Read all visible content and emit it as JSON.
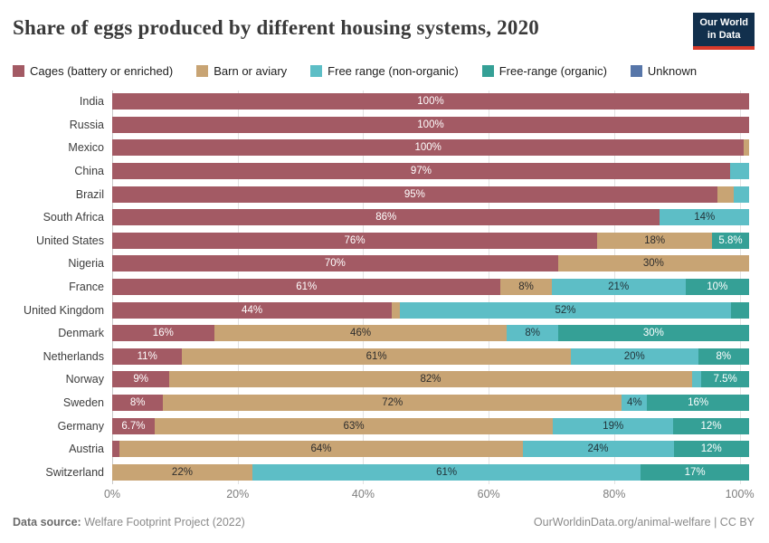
{
  "header": {
    "title": "Share of eggs produced by different housing systems, 2020",
    "logo": {
      "line1": "Our World",
      "line2": "in Data",
      "bg_color": "#12304d",
      "accent_color": "#d93a2b"
    }
  },
  "legend": {
    "items": [
      {
        "label": "Cages (battery or enriched)",
        "color": "#a35a64"
      },
      {
        "label": "Barn or aviary",
        "color": "#c8a474"
      },
      {
        "label": "Free range (non-organic)",
        "color": "#5dbec6"
      },
      {
        "label": "Free-range (organic)",
        "color": "#35a096"
      },
      {
        "label": "Unknown",
        "color": "#5776a9"
      }
    ]
  },
  "chart_data": {
    "type": "bar",
    "orientation": "horizontal",
    "stacked": true,
    "title": "Share of eggs produced by different housing systems, 2020",
    "unit": "%",
    "axis_max": 101.5,
    "x_ticks": [
      0,
      20,
      40,
      60,
      80,
      100
    ],
    "grid": true,
    "legend_position": "top",
    "series_names": [
      "Cages (battery or enriched)",
      "Barn or aviary",
      "Free range (non-organic)",
      "Free-range (organic)",
      "Unknown"
    ],
    "series_colors": [
      "#a35a64",
      "#c8a474",
      "#5dbec6",
      "#35a096",
      "#5776a9"
    ],
    "series_label_colors": [
      "#ffffff",
      "#2d2d2d",
      "#22343a",
      "#ffffff",
      "#ffffff"
    ],
    "rows": [
      {
        "country": "India",
        "segments": [
          {
            "series": 0,
            "value": 100,
            "label": "100%"
          }
        ]
      },
      {
        "country": "Russia",
        "segments": [
          {
            "series": 0,
            "value": 100,
            "label": "100%"
          }
        ]
      },
      {
        "country": "Mexico",
        "segments": [
          {
            "series": 0,
            "value": 100,
            "label": "100%"
          },
          {
            "series": 1,
            "value": 0.8,
            "label": ""
          }
        ]
      },
      {
        "country": "China",
        "segments": [
          {
            "series": 0,
            "value": 97,
            "label": "97%"
          },
          {
            "series": 2,
            "value": 3,
            "label": ""
          }
        ]
      },
      {
        "country": "Brazil",
        "segments": [
          {
            "series": 0,
            "value": 95,
            "label": "95%"
          },
          {
            "series": 1,
            "value": 2.6,
            "label": ""
          },
          {
            "series": 2,
            "value": 2.4,
            "label": ""
          }
        ]
      },
      {
        "country": "South Africa",
        "segments": [
          {
            "series": 0,
            "value": 86,
            "label": "86%"
          },
          {
            "series": 2,
            "value": 14,
            "label": "14%"
          }
        ]
      },
      {
        "country": "United States",
        "segments": [
          {
            "series": 0,
            "value": 76,
            "label": "76%"
          },
          {
            "series": 1,
            "value": 18,
            "label": "18%"
          },
          {
            "series": 3,
            "value": 5.8,
            "label": "5.8%"
          }
        ]
      },
      {
        "country": "Nigeria",
        "segments": [
          {
            "series": 0,
            "value": 70,
            "label": "70%"
          },
          {
            "series": 1,
            "value": 30,
            "label": "30%"
          }
        ]
      },
      {
        "country": "France",
        "segments": [
          {
            "series": 0,
            "value": 61,
            "label": "61%"
          },
          {
            "series": 1,
            "value": 8,
            "label": "8%"
          },
          {
            "series": 2,
            "value": 21,
            "label": "21%"
          },
          {
            "series": 3,
            "value": 10,
            "label": "10%"
          }
        ]
      },
      {
        "country": "United Kingdom",
        "segments": [
          {
            "series": 0,
            "value": 44,
            "label": "44%"
          },
          {
            "series": 1,
            "value": 1.3,
            "label": ""
          },
          {
            "series": 2,
            "value": 52,
            "label": "52%"
          },
          {
            "series": 3,
            "value": 2.9,
            "label": ""
          }
        ]
      },
      {
        "country": "Denmark",
        "segments": [
          {
            "series": 0,
            "value": 16,
            "label": "16%"
          },
          {
            "series": 1,
            "value": 46,
            "label": "46%"
          },
          {
            "series": 2,
            "value": 8,
            "label": "8%"
          },
          {
            "series": 3,
            "value": 30,
            "label": "30%"
          }
        ]
      },
      {
        "country": "Netherlands",
        "segments": [
          {
            "series": 0,
            "value": 11,
            "label": "11%"
          },
          {
            "series": 1,
            "value": 61,
            "label": "61%"
          },
          {
            "series": 2,
            "value": 20,
            "label": "20%"
          },
          {
            "series": 3,
            "value": 8,
            "label": "8%"
          }
        ]
      },
      {
        "country": "Norway",
        "segments": [
          {
            "series": 0,
            "value": 9,
            "label": "9%"
          },
          {
            "series": 1,
            "value": 82,
            "label": "82%"
          },
          {
            "series": 2,
            "value": 1.5,
            "label": ""
          },
          {
            "series": 3,
            "value": 7.5,
            "label": "7.5%"
          }
        ]
      },
      {
        "country": "Sweden",
        "segments": [
          {
            "series": 0,
            "value": 8,
            "label": "8%"
          },
          {
            "series": 1,
            "value": 72,
            "label": "72%"
          },
          {
            "series": 2,
            "value": 4,
            "label": "4%"
          },
          {
            "series": 3,
            "value": 16,
            "label": "16%"
          }
        ]
      },
      {
        "country": "Germany",
        "segments": [
          {
            "series": 0,
            "value": 6.7,
            "label": "6.7%"
          },
          {
            "series": 1,
            "value": 63,
            "label": "63%"
          },
          {
            "series": 2,
            "value": 19,
            "label": "19%"
          },
          {
            "series": 3,
            "value": 12,
            "label": "12%"
          }
        ]
      },
      {
        "country": "Austria",
        "segments": [
          {
            "series": 0,
            "value": 1.2,
            "label": ""
          },
          {
            "series": 1,
            "value": 64,
            "label": "64%"
          },
          {
            "series": 2,
            "value": 24,
            "label": "24%"
          },
          {
            "series": 3,
            "value": 12,
            "label": "12%"
          }
        ]
      },
      {
        "country": "Switzerland",
        "segments": [
          {
            "series": 1,
            "value": 22,
            "label": "22%"
          },
          {
            "series": 2,
            "value": 61,
            "label": "61%"
          },
          {
            "series": 3,
            "value": 17,
            "label": "17%"
          }
        ]
      }
    ]
  },
  "footer": {
    "source_prefix": "Data source:",
    "source_text": " Welfare Footprint Project (2022)",
    "link_text": "OurWorldinData.org/animal-welfare | CC BY"
  }
}
